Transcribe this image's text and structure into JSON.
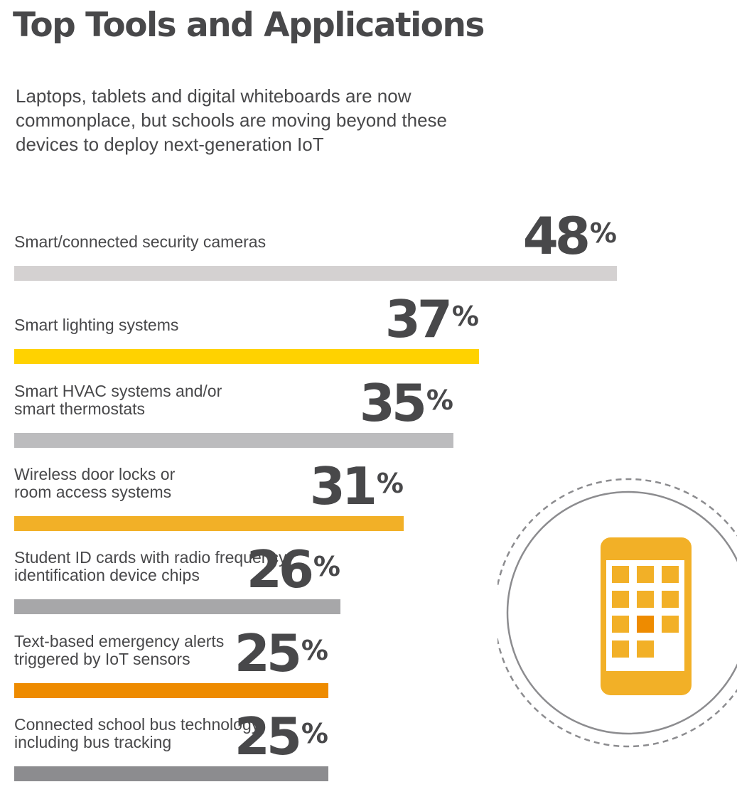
{
  "title": "Top Tools and Applications",
  "subtitle": "Laptops, tablets and digital whiteboards are now commonplace, but schools are moving beyond these devices to deploy next-generation IoT",
  "chart_data": {
    "type": "bar",
    "orientation": "horizontal",
    "title": "Top Tools and Applications",
    "unit": "%",
    "xlim": [
      0,
      48
    ],
    "categories": [
      "Smart/connected security cameras",
      "Smart lighting systems",
      "Smart HVAC systems and/or\nsmart thermostats",
      "Wireless door locks or\nroom access systems",
      "Student ID cards with radio frequency\nidentification device chips",
      "Text-based emergency alerts\ntriggered by IoT sensors",
      "Connected school bus technology,\nincluding bus tracking"
    ],
    "values": [
      48,
      37,
      35,
      31,
      26,
      25,
      25
    ],
    "value_labels": [
      "48",
      "37",
      "35",
      "31",
      "26",
      "25",
      "25"
    ],
    "percent_sign": "%",
    "colors": [
      "#d4d1d1",
      "#ffd200",
      "#bcbcbe",
      "#f2b027",
      "#a7a7a9",
      "#ee8b00",
      "#8c8c8f"
    ]
  },
  "illustration": {
    "icon": "smartphone-app-grid-icon",
    "phone_color": "#f2b027",
    "highlight_color": "#ee8b00",
    "circle_color": "#8c8c8f"
  }
}
